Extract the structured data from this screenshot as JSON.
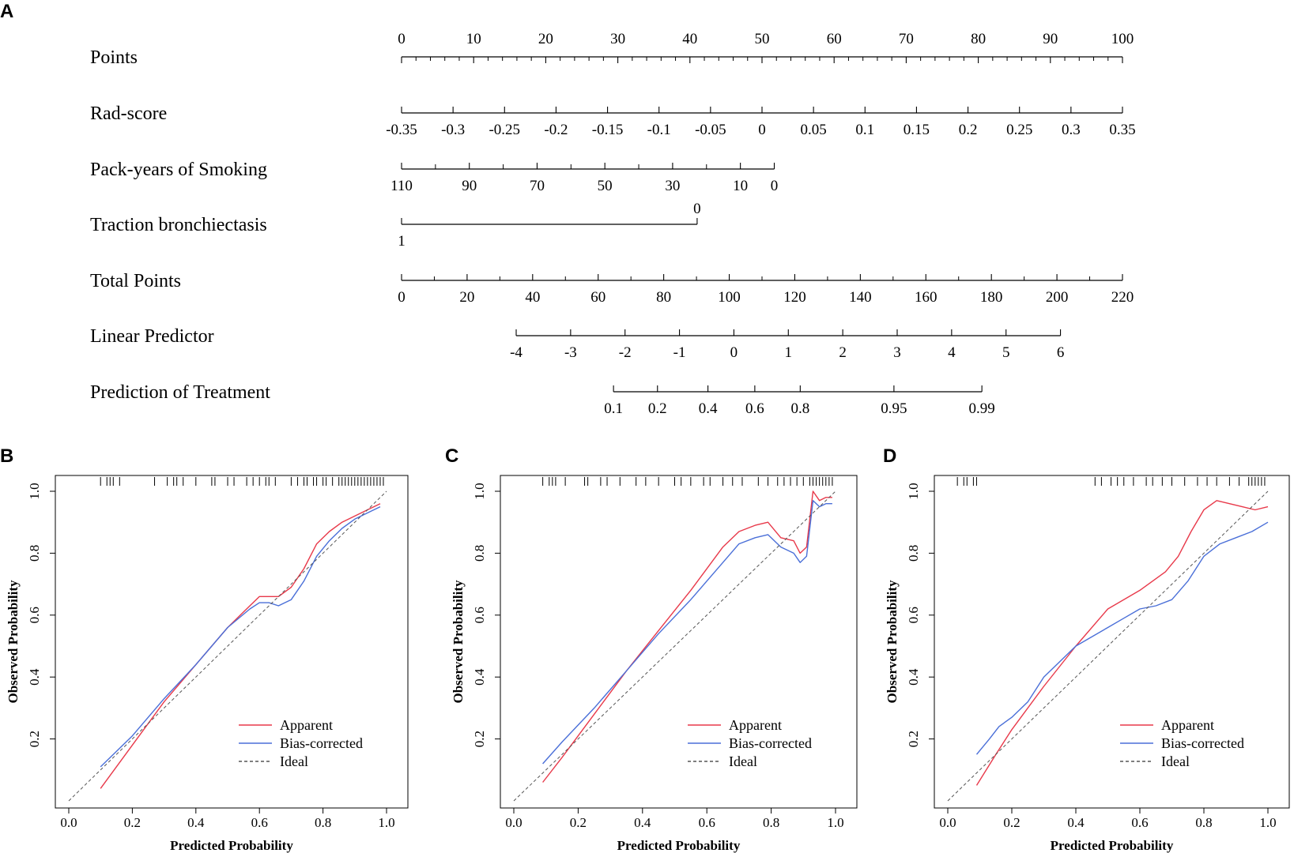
{
  "figure": {
    "panel_a_label": "A",
    "panel_b_label": "B",
    "panel_c_label": "C",
    "panel_d_label": "D"
  },
  "chart_data": [
    {
      "id": "A",
      "type": "nomogram",
      "title": "",
      "scales": [
        {
          "name": "Points",
          "ticks": [
            "0",
            "10",
            "20",
            "30",
            "40",
            "50",
            "60",
            "70",
            "80",
            "90",
            "100"
          ],
          "tick_values": [
            0,
            10,
            20,
            30,
            40,
            50,
            60,
            70,
            80,
            90,
            100
          ],
          "points_start": 0,
          "points_end": 100,
          "labels_above": true,
          "minor_per_label": 5
        },
        {
          "name": "Rad-score",
          "ticks": [
            "-0.35",
            "-0.3",
            "-0.25",
            "-0.2",
            "-0.15",
            "-0.1",
            "-0.05",
            "0",
            "0.05",
            "0.1",
            "0.15",
            "0.2",
            "0.25",
            "0.3",
            "0.35"
          ],
          "tick_values": [
            -0.35,
            -0.3,
            -0.25,
            -0.2,
            -0.15,
            -0.1,
            -0.05,
            0,
            0.05,
            0.1,
            0.15,
            0.2,
            0.25,
            0.3,
            0.35
          ],
          "points_start": 0,
          "points_end": 100,
          "labels_above": false
        },
        {
          "name": "Pack-years of Smoking",
          "ticks": [
            "110",
            "90",
            "70",
            "50",
            "30",
            "10",
            "0"
          ],
          "tick_values": [
            110,
            90,
            70,
            50,
            30,
            10,
            0
          ],
          "minor_values": [
            100,
            80,
            60,
            40,
            20
          ],
          "points_start": 0,
          "points_end": 51.7,
          "labels_above": false
        },
        {
          "name": "Traction bronchiectasis",
          "ticks": [
            "1",
            "0"
          ],
          "tick_values": [
            1,
            0
          ],
          "points_start": 0,
          "points_end": 41,
          "labels_above": false,
          "end_label_above": true
        },
        {
          "name": "Total Points",
          "ticks": [
            "0",
            "20",
            "40",
            "60",
            "80",
            "100",
            "120",
            "140",
            "160",
            "180",
            "200",
            "220"
          ],
          "tick_values": [
            0,
            20,
            40,
            60,
            80,
            100,
            120,
            140,
            160,
            180,
            200,
            220
          ],
          "points_start": 0,
          "points_end": 100,
          "labels_above": false,
          "minor_per_label": 2
        },
        {
          "name": "Linear Predictor",
          "ticks": [
            "-4",
            "-3",
            "-2",
            "-1",
            "0",
            "1",
            "2",
            "3",
            "4",
            "5",
            "6"
          ],
          "tick_values": [
            -4,
            -3,
            -2,
            -1,
            0,
            1,
            2,
            3,
            4,
            5,
            6
          ],
          "points_start": 15.9,
          "points_end": 91.4,
          "labels_above": false
        },
        {
          "name": "Prediction of Treatment",
          "ticks": [
            "0.1",
            "0.2",
            "0.4",
            "0.6",
            "0.8",
            "0.95",
            "0.99"
          ],
          "tick_values": [
            0.1,
            0.2,
            0.4,
            0.6,
            0.8,
            0.95,
            0.99
          ],
          "points_start": 29.4,
          "points_end": 80.5,
          "labels_above": false,
          "tick_positions_points": [
            29.4,
            35.5,
            42.5,
            49.0,
            55.3,
            68.3,
            80.5
          ]
        }
      ]
    },
    {
      "id": "B",
      "type": "line",
      "xlabel": "Predicted Probability",
      "ylabel": "Observed Probability",
      "xlim": [
        0.0,
        1.0
      ],
      "ylim": [
        0.0,
        1.0
      ],
      "xticks": [
        "0.0",
        "0.2",
        "0.4",
        "0.6",
        "0.8",
        "1.0"
      ],
      "yticks": [
        "0.2",
        "0.4",
        "0.6",
        "0.8",
        "1.0"
      ],
      "legend": [
        "Apparent",
        "Bias-corrected",
        "Ideal"
      ],
      "legend_position": "bottom-right",
      "series": [
        {
          "name": "Apparent",
          "color": "#e8394a",
          "x": [
            0.1,
            0.2,
            0.3,
            0.4,
            0.5,
            0.57,
            0.6,
            0.63,
            0.66,
            0.7,
            0.74,
            0.78,
            0.82,
            0.86,
            0.9,
            0.94,
            0.98
          ],
          "y": [
            0.04,
            0.18,
            0.32,
            0.44,
            0.56,
            0.63,
            0.66,
            0.66,
            0.66,
            0.69,
            0.75,
            0.83,
            0.87,
            0.9,
            0.92,
            0.94,
            0.96
          ]
        },
        {
          "name": "Bias-corrected",
          "color": "#4a6fd8",
          "x": [
            0.1,
            0.2,
            0.3,
            0.4,
            0.5,
            0.57,
            0.6,
            0.63,
            0.66,
            0.7,
            0.74,
            0.78,
            0.82,
            0.86,
            0.9,
            0.94,
            0.98
          ],
          "y": [
            0.11,
            0.21,
            0.33,
            0.44,
            0.56,
            0.62,
            0.64,
            0.64,
            0.63,
            0.65,
            0.71,
            0.79,
            0.84,
            0.88,
            0.91,
            0.93,
            0.95
          ]
        },
        {
          "name": "Ideal",
          "color": "#555555",
          "x": [
            0,
            1
          ],
          "y": [
            0,
            1
          ]
        }
      ],
      "rug": [
        0.1,
        0.12,
        0.13,
        0.14,
        0.16,
        0.27,
        0.31,
        0.33,
        0.34,
        0.36,
        0.4,
        0.45,
        0.46,
        0.5,
        0.52,
        0.56,
        0.58,
        0.6,
        0.62,
        0.63,
        0.65,
        0.7,
        0.72,
        0.74,
        0.75,
        0.77,
        0.78,
        0.8,
        0.81,
        0.83,
        0.85,
        0.86,
        0.87,
        0.88,
        0.89,
        0.9,
        0.91,
        0.92,
        0.93,
        0.94,
        0.95,
        0.96,
        0.97,
        0.98,
        0.99
      ]
    },
    {
      "id": "C",
      "type": "line",
      "xlabel": "Predicted Probability",
      "ylabel": "Observed Probability",
      "xlim": [
        0.0,
        1.0
      ],
      "ylim": [
        0.0,
        1.0
      ],
      "xticks": [
        "0.0",
        "0.2",
        "0.4",
        "0.6",
        "0.8",
        "1.0"
      ],
      "yticks": [
        "0.2",
        "0.4",
        "0.6",
        "0.8",
        "1.0"
      ],
      "legend": [
        "Apparent",
        "Bias-corrected",
        "Ideal"
      ],
      "legend_position": "bottom-right",
      "series": [
        {
          "name": "Apparent",
          "color": "#e8394a",
          "x": [
            0.09,
            0.15,
            0.25,
            0.35,
            0.45,
            0.55,
            0.65,
            0.7,
            0.75,
            0.79,
            0.83,
            0.87,
            0.89,
            0.91,
            0.93,
            0.95,
            0.97,
            0.99
          ],
          "y": [
            0.06,
            0.14,
            0.28,
            0.42,
            0.55,
            0.68,
            0.82,
            0.87,
            0.89,
            0.9,
            0.85,
            0.84,
            0.8,
            0.82,
            1.0,
            0.97,
            0.98,
            0.98
          ]
        },
        {
          "name": "Bias-corrected",
          "color": "#4a6fd8",
          "x": [
            0.09,
            0.15,
            0.25,
            0.35,
            0.45,
            0.55,
            0.65,
            0.7,
            0.75,
            0.79,
            0.83,
            0.87,
            0.89,
            0.91,
            0.93,
            0.95,
            0.97,
            0.99
          ],
          "y": [
            0.12,
            0.19,
            0.3,
            0.42,
            0.54,
            0.65,
            0.77,
            0.83,
            0.85,
            0.86,
            0.82,
            0.8,
            0.77,
            0.79,
            0.97,
            0.95,
            0.96,
            0.96
          ]
        },
        {
          "name": "Ideal",
          "color": "#555555",
          "x": [
            0,
            1
          ],
          "y": [
            0,
            1
          ]
        }
      ],
      "rug": [
        0.09,
        0.11,
        0.12,
        0.13,
        0.16,
        0.22,
        0.23,
        0.27,
        0.29,
        0.33,
        0.38,
        0.41,
        0.45,
        0.5,
        0.52,
        0.55,
        0.59,
        0.61,
        0.65,
        0.68,
        0.71,
        0.76,
        0.79,
        0.82,
        0.84,
        0.86,
        0.88,
        0.9,
        0.92,
        0.93,
        0.94,
        0.95,
        0.96,
        0.97,
        0.98,
        0.99
      ]
    },
    {
      "id": "D",
      "type": "line",
      "xlabel": "Predicted Probability",
      "ylabel": "Observed Probability",
      "xlim": [
        0.0,
        1.0
      ],
      "ylim": [
        0.0,
        1.0
      ],
      "xticks": [
        "0.0",
        "0.2",
        "0.4",
        "0.6",
        "0.8",
        "1.0"
      ],
      "yticks": [
        "0.2",
        "0.4",
        "0.6",
        "0.8",
        "1.0"
      ],
      "legend": [
        "Apparent",
        "Bias-corrected",
        "Ideal"
      ],
      "legend_position": "bottom-right",
      "series": [
        {
          "name": "Apparent",
          "color": "#e8394a",
          "x": [
            0.09,
            0.15,
            0.2,
            0.3,
            0.4,
            0.5,
            0.6,
            0.68,
            0.72,
            0.76,
            0.8,
            0.84,
            0.88,
            0.92,
            0.96,
            1.0
          ],
          "y": [
            0.05,
            0.15,
            0.23,
            0.37,
            0.5,
            0.62,
            0.68,
            0.74,
            0.79,
            0.87,
            0.94,
            0.97,
            0.96,
            0.95,
            0.94,
            0.95
          ]
        },
        {
          "name": "Bias-corrected",
          "color": "#4a6fd8",
          "x": [
            0.09,
            0.13,
            0.16,
            0.2,
            0.25,
            0.3,
            0.35,
            0.4,
            0.5,
            0.55,
            0.6,
            0.65,
            0.7,
            0.75,
            0.8,
            0.85,
            0.9,
            0.95,
            1.0
          ],
          "y": [
            0.15,
            0.2,
            0.24,
            0.27,
            0.32,
            0.4,
            0.45,
            0.5,
            0.56,
            0.59,
            0.62,
            0.63,
            0.65,
            0.71,
            0.79,
            0.83,
            0.85,
            0.87,
            0.9
          ]
        },
        {
          "name": "Ideal",
          "color": "#555555",
          "x": [
            0,
            1
          ],
          "y": [
            0,
            1
          ]
        }
      ],
      "rug": [
        0.03,
        0.05,
        0.06,
        0.08,
        0.09,
        0.46,
        0.48,
        0.51,
        0.53,
        0.55,
        0.58,
        0.62,
        0.64,
        0.67,
        0.7,
        0.74,
        0.78,
        0.81,
        0.84,
        0.88,
        0.91,
        0.94,
        0.95,
        0.96,
        0.97,
        0.98,
        0.99
      ]
    }
  ]
}
